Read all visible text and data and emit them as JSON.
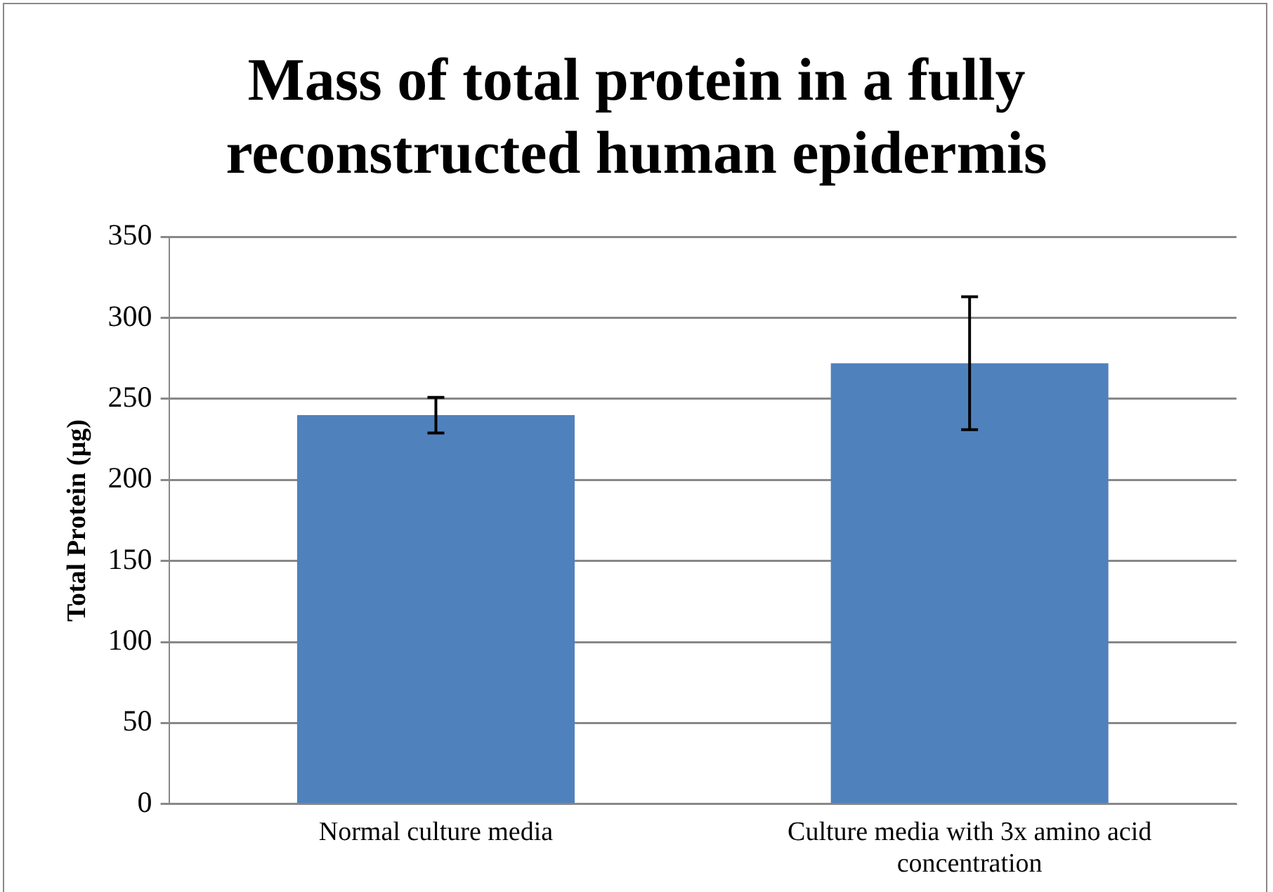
{
  "chart_data": {
    "type": "bar",
    "title": "Mass of total protein in a fully reconstructed human epidermis",
    "ylabel": "Total Protein (µg)",
    "categories": [
      "Normal culture media",
      "Culture media with 3x amino acid concentration"
    ],
    "values": [
      240,
      272
    ],
    "errors": [
      11,
      41
    ],
    "color": "#4f81bd",
    "ylim": [
      0,
      350
    ],
    "yticks": [
      0,
      50,
      100,
      150,
      200,
      250,
      300,
      350
    ],
    "grid": "y",
    "legend": false
  }
}
